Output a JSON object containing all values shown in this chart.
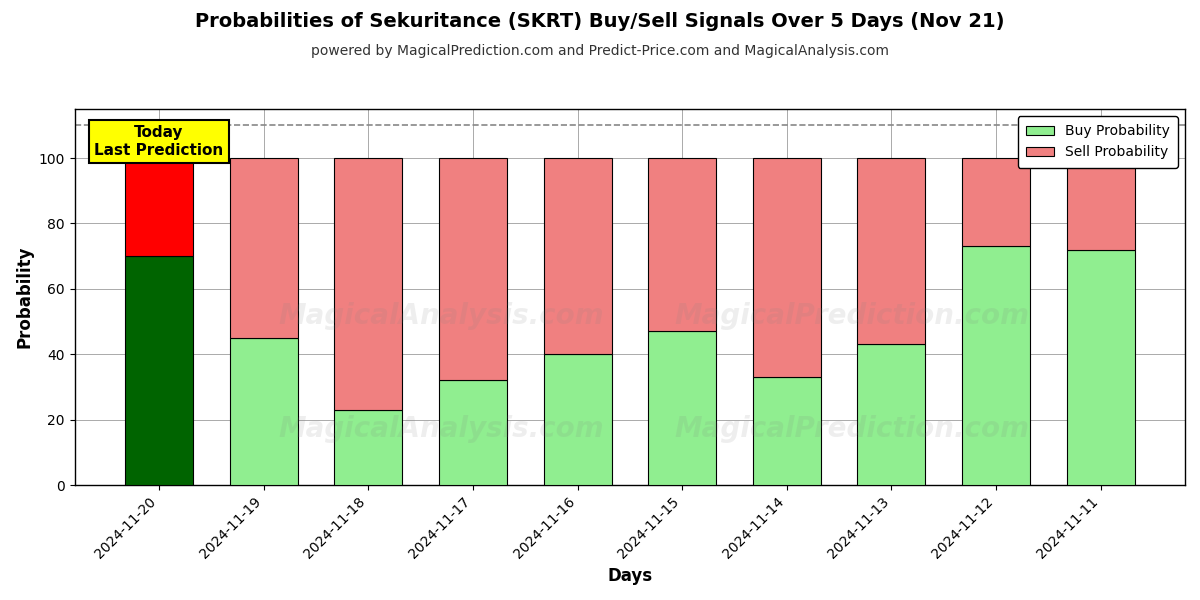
{
  "title": "Probabilities of Sekuritance (SKRT) Buy/Sell Signals Over 5 Days (Nov 21)",
  "subtitle": "powered by MagicalPrediction.com and Predict-Price.com and MagicalAnalysis.com",
  "xlabel": "Days",
  "ylabel": "Probability",
  "categories": [
    "2024-11-20",
    "2024-11-19",
    "2024-11-18",
    "2024-11-17",
    "2024-11-16",
    "2024-11-15",
    "2024-11-14",
    "2024-11-13",
    "2024-11-12",
    "2024-11-11"
  ],
  "buy_values": [
    70,
    45,
    23,
    32,
    40,
    47,
    33,
    43,
    73,
    72
  ],
  "sell_values": [
    30,
    55,
    77,
    68,
    60,
    53,
    67,
    57,
    27,
    28
  ],
  "today_buy_color": "#006400",
  "today_sell_color": "#FF0000",
  "buy_color": "#90EE90",
  "sell_color": "#F08080",
  "today_label_bg": "#FFFF00",
  "today_label_text": "Today\nLast Prediction",
  "dashed_line_y": 110,
  "ylim": [
    0,
    115
  ],
  "yticks": [
    0,
    20,
    40,
    60,
    80,
    100
  ],
  "bar_edge_color": "#000000",
  "watermark_texts": [
    "MagicalAnalysis.com",
    "MagicalPrediction.com"
  ],
  "watermark_alpha": 0.13,
  "grid_color": "#aaaaaa",
  "figsize": [
    12,
    6
  ],
  "dpi": 100
}
